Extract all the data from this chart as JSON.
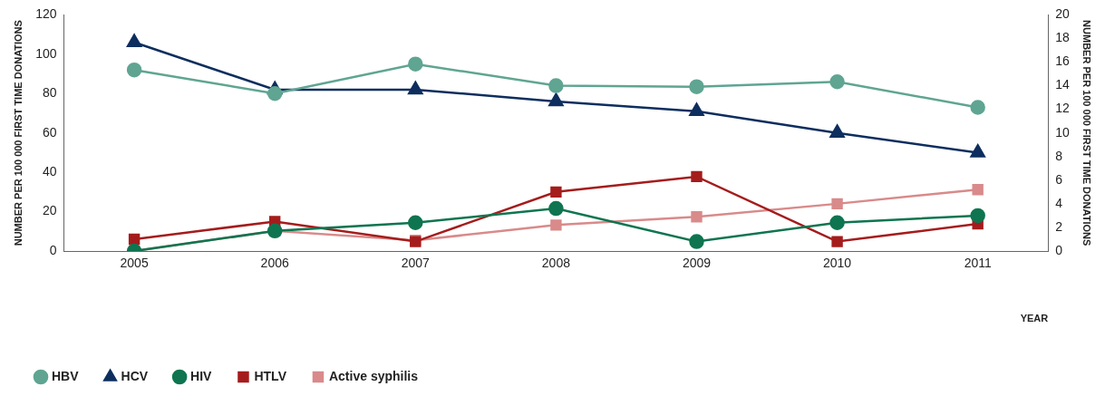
{
  "chart_data": {
    "type": "line",
    "xlabel": "YEAR",
    "ylabel": "NUMBER PER 100 000 FIRST TIME DONATIONS",
    "y2label": "NUMBER PER 100 000 FIRST TIME DONATIONS",
    "categories": [
      "2005",
      "2006",
      "2007",
      "2008",
      "2009",
      "2010",
      "2011"
    ],
    "ylim": [
      0,
      120
    ],
    "yticks": [
      0,
      20,
      40,
      60,
      80,
      100,
      120
    ],
    "y2lim": [
      0,
      20
    ],
    "y2ticks": [
      0,
      2,
      4,
      6,
      8,
      10,
      12,
      14,
      16,
      18,
      20
    ],
    "grid": false,
    "legend": "bottom left",
    "series": [
      {
        "name": "HBV",
        "color": "#5fa592",
        "marker": "circle",
        "values": [
          92,
          80,
          95,
          84,
          83.5,
          86,
          73
        ]
      },
      {
        "name": "HCV",
        "color": "#0d2e5e",
        "marker": "triangle",
        "values": [
          106,
          82,
          82,
          76,
          71,
          60,
          50
        ]
      },
      {
        "name": "HIV",
        "color": "#0e7550",
        "marker": "circle",
        "axis": "y2",
        "values": [
          0,
          1.7,
          2.4,
          3.6,
          0.8,
          2.4,
          3
        ]
      },
      {
        "name": "HTLV",
        "color": "#a51c1c",
        "marker": "square",
        "axis": "y2",
        "values": [
          1,
          2.5,
          0.8,
          5,
          6.3,
          0.8,
          2.3
        ]
      },
      {
        "name": "Active syphilis",
        "color": "#d98a8a",
        "marker": "square",
        "axis": "y2",
        "values": [
          0,
          1.7,
          0.9,
          2.2,
          2.9,
          4,
          5.2
        ]
      }
    ]
  }
}
